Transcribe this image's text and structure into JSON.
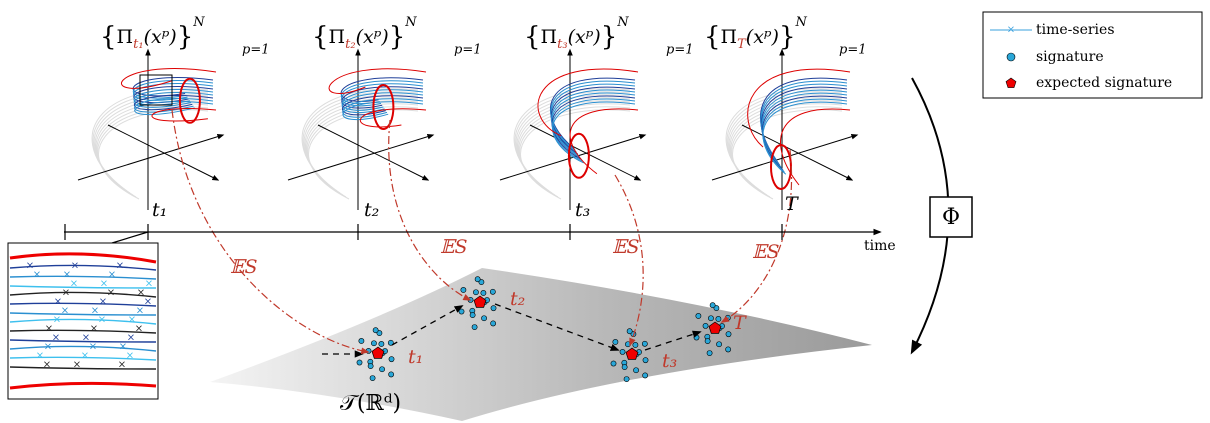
{
  "headers": [
    {
      "open": "{",
      "symbol": "Π",
      "index": "t₁",
      "argument": "(xᵖ)",
      "close": "}",
      "upper": "N",
      "lower": "p=1"
    },
    {
      "open": "{",
      "symbol": "Π",
      "index": "t₂",
      "argument": "(xᵖ)",
      "close": "}",
      "upper": "N",
      "lower": "p=1"
    },
    {
      "open": "{",
      "symbol": "Π",
      "index": "t₃",
      "argument": "(xᵖ)",
      "close": "}",
      "upper": "N",
      "lower": "p=1"
    },
    {
      "open": "{",
      "symbol": "Π",
      "index": "T",
      "argument": "(xᵖ)",
      "close": "}",
      "upper": "N",
      "lower": "p=1"
    }
  ],
  "timeline": {
    "ticks": [
      "t₁",
      "t₂",
      "t₃",
      "T"
    ],
    "axis_label": "time"
  },
  "expectation_labels": [
    "𝔼S",
    "𝔼S",
    "𝔼S",
    "𝔼S"
  ],
  "manifold": {
    "label": "𝒯(ℝᵈ)",
    "point_labels": [
      "t₁",
      "t₂",
      "t₃",
      "T"
    ]
  },
  "map_label": "Φ",
  "legend": [
    "time-series",
    "signature",
    "expected signature"
  ]
}
